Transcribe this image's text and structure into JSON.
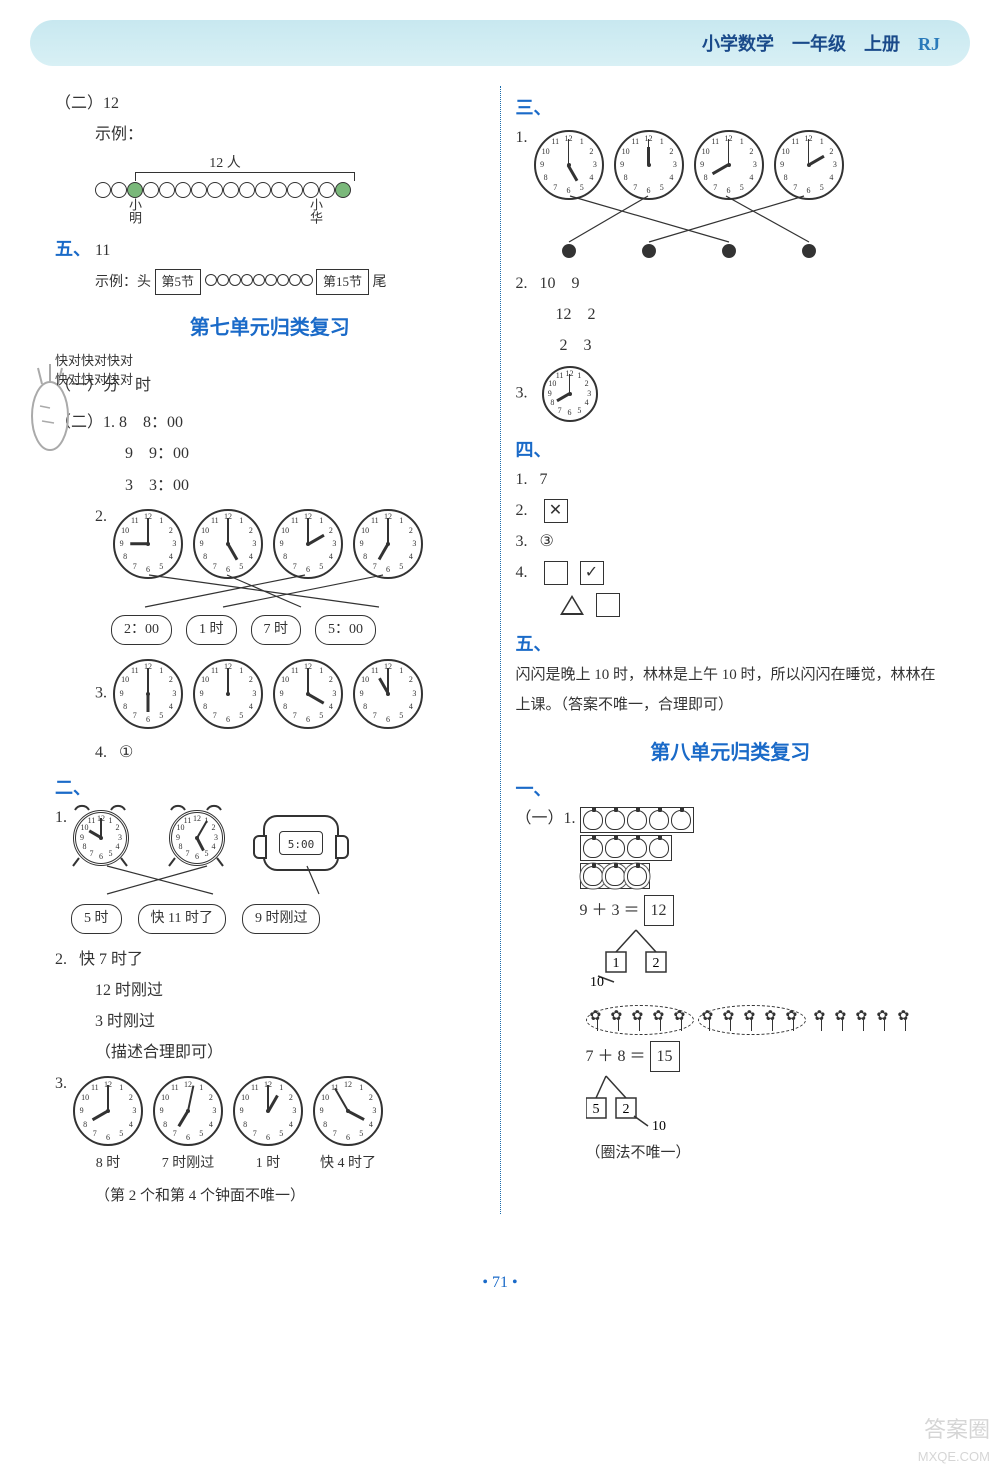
{
  "header": {
    "subject": "小学数学",
    "grade": "一年级",
    "volume": "上册",
    "code": "RJ"
  },
  "page_number": "71",
  "left": {
    "sec_er": {
      "label": "（二）12",
      "example_label": "示例：",
      "brace_label": "12 人",
      "name_left": "小明",
      "name_right": "小华",
      "bead_count": 16,
      "filled_index_a": 2,
      "filled_index_b": 15
    },
    "sec_wu": {
      "label": "五、",
      "value": "11",
      "example_label": "示例：头",
      "box1": "第5节",
      "box2": "第15节",
      "tail": "尾",
      "bead_count": 9
    },
    "unit7_title": "第七单元归类复习",
    "kuaidui_lines": [
      "快对快对快对",
      "快对快对快对"
    ],
    "q1_1": {
      "label": "（一）分　时"
    },
    "q1_2": {
      "label": "（二）1.",
      "rows": [
        {
          "a": "8",
          "b": "8：00"
        },
        {
          "a": "9",
          "b": "9：00"
        },
        {
          "a": "3",
          "b": "3：00"
        }
      ]
    },
    "q1_2_2": {
      "label": "2.",
      "clocks": [
        {
          "hour": 9,
          "minute": 0
        },
        {
          "hour": 5,
          "minute": 0
        },
        {
          "hour": 2,
          "minute": 0
        },
        {
          "hour": 7,
          "minute": 0
        }
      ],
      "labels": [
        "2：00",
        "1 时",
        "7 时",
        "5：00"
      ],
      "matches": [
        [
          0,
          3
        ],
        [
          1,
          2
        ],
        [
          2,
          0
        ],
        [
          3,
          1
        ]
      ]
    },
    "q1_2_3": {
      "label": "3.",
      "clocks": [
        {
          "hour": 6,
          "minute": 0
        },
        {
          "hour": 12,
          "minute": 0
        },
        {
          "hour": 4,
          "minute": 0
        },
        {
          "hour": 11,
          "minute": 0
        }
      ]
    },
    "q1_2_4": {
      "label": "4.",
      "answer": "①"
    },
    "sec2": {
      "label": "二、"
    },
    "sec2_1": {
      "label": "1.",
      "watches": [
        {
          "type": "alarm",
          "hour": 10,
          "minute": 0
        },
        {
          "type": "alarm",
          "hour": 5,
          "minute": 5
        },
        {
          "type": "digital",
          "text": "5:00"
        }
      ],
      "labels": [
        "5 时",
        "快 11 时了",
        "9 时刚过"
      ],
      "matches": [
        [
          0,
          1
        ],
        [
          1,
          0
        ],
        [
          2,
          2
        ]
      ]
    },
    "sec2_2": {
      "label": "2.",
      "lines": [
        "快 7 时了",
        "12 时刚过",
        "3 时刚过",
        "（描述合理即可）"
      ]
    },
    "sec2_3": {
      "label": "3.",
      "clocks": [
        {
          "hour": 8,
          "minute": 0,
          "caption": "8 时"
        },
        {
          "hour": 7,
          "minute": 2,
          "caption": "7 时刚过"
        },
        {
          "hour": 1,
          "minute": 0,
          "caption": "1 时"
        },
        {
          "hour": 3,
          "minute": 55,
          "caption": "快 4 时了"
        }
      ],
      "note": "（第 2 个和第 4 个钟面不唯一）"
    }
  },
  "right": {
    "sec3": {
      "label": "三、",
      "q1": {
        "label": "1.",
        "clocks": [
          {
            "hour": 5,
            "minute": 0
          },
          {
            "hour": 12,
            "minute": 0
          },
          {
            "hour": 8,
            "minute": 0
          },
          {
            "hour": 2,
            "minute": 0
          }
        ],
        "matches": [
          [
            0,
            2
          ],
          [
            1,
            0
          ],
          [
            2,
            3
          ],
          [
            3,
            1
          ]
        ]
      },
      "q2": {
        "label": "2.",
        "rows": [
          [
            "10",
            "9"
          ],
          [
            "12",
            "2"
          ],
          [
            "2",
            "3"
          ]
        ]
      },
      "q3": {
        "label": "3.",
        "clock": {
          "hour": 8,
          "minute": 0
        }
      }
    },
    "sec4": {
      "label": "四、",
      "q1": {
        "label": "1.",
        "answer": "7"
      },
      "q2": {
        "label": "2.",
        "shape": "x-box"
      },
      "q3": {
        "label": "3.",
        "answer": "③"
      },
      "q4": {
        "label": "4.",
        "row1": [
          "empty",
          "check"
        ],
        "row2": [
          "triangle",
          "empty"
        ]
      }
    },
    "sec5": {
      "label": "五、",
      "text": "闪闪是晚上 10 时，林林是上午 10 时，所以闪闪在睡觉，林林在上课。（答案不唯一，合理即可）"
    },
    "unit8_title": "第八单元归类复习",
    "sec_yi": {
      "label": "一、"
    },
    "u8_1": {
      "label": "（一）1.",
      "fruit_rows": [
        5,
        4,
        3
      ],
      "eq": {
        "a": "9",
        "op": "＋",
        "b": "3",
        "eq": "＝",
        "r": "12"
      },
      "split": {
        "l": "1",
        "r": "2",
        "sum": "10"
      }
    },
    "u8_2": {
      "flower_groups": [
        5,
        5,
        5
      ],
      "eq": {
        "a": "7",
        "op": "＋",
        "b": "8",
        "eq": "＝",
        "r": "15"
      },
      "split": {
        "l": "5",
        "r": "2",
        "sum": "10"
      },
      "note": "（圈法不唯一）"
    }
  },
  "colors": {
    "blue": "#1a6ac8",
    "header_bg": "#d0ecf2"
  }
}
